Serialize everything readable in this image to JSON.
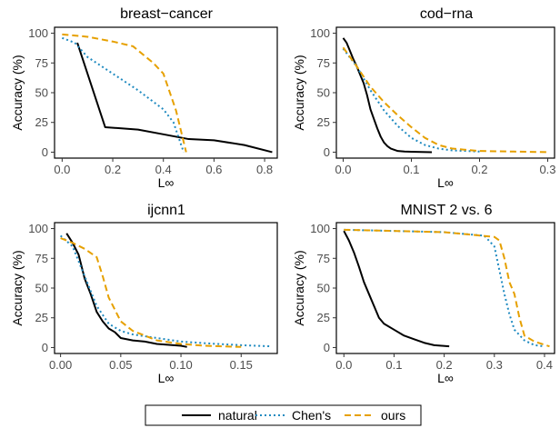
{
  "figure": {
    "legend": {
      "position": "bottom-center",
      "entries": [
        {
          "label": "natural",
          "color": "#000000",
          "dash": "solid"
        },
        {
          "label": "Chen's",
          "color": "#1f8ac0",
          "dash": "dotted"
        },
        {
          "label": "ours",
          "color": "#e6a000",
          "dash": "dashed"
        }
      ]
    }
  },
  "chart_data": [
    {
      "type": "line",
      "title": "breast−cancer",
      "xlabel": "L∞",
      "ylabel": "Accuracy (%)",
      "xlim": [
        -0.03,
        0.85
      ],
      "ylim": [
        -5,
        105
      ],
      "xticks": [
        0.0,
        0.2,
        0.4,
        0.6,
        0.8
      ],
      "xtick_labels": [
        "0.0",
        "0.2",
        "0.4",
        "0.6",
        "0.8"
      ],
      "yticks": [
        0,
        25,
        50,
        75,
        100
      ],
      "ytick_labels": [
        "0",
        "25",
        "50",
        "75",
        "100"
      ],
      "grid": false,
      "series": [
        {
          "name": "natural",
          "x": [
            0.06,
            0.17,
            0.3,
            0.4,
            0.5,
            0.6,
            0.72,
            0.83
          ],
          "y": [
            92,
            21,
            19,
            15,
            11,
            10,
            6,
            0
          ]
        },
        {
          "name": "Chen's",
          "x": [
            0.0,
            0.05,
            0.1,
            0.2,
            0.3,
            0.4,
            0.44,
            0.48
          ],
          "y": [
            96,
            92,
            80,
            66,
            52,
            36,
            25,
            0
          ]
        },
        {
          "name": "ours",
          "x": [
            0.0,
            0.1,
            0.2,
            0.28,
            0.36,
            0.4,
            0.45,
            0.49
          ],
          "y": [
            99,
            97,
            93,
            89,
            75,
            66,
            35,
            0
          ]
        }
      ]
    },
    {
      "type": "line",
      "title": "cod−rna",
      "xlabel": "L∞",
      "ylabel": "Accuracy (%)",
      "xlim": [
        -0.01,
        0.31
      ],
      "ylim": [
        -5,
        105
      ],
      "xticks": [
        0.0,
        0.1,
        0.2,
        0.3
      ],
      "xtick_labels": [
        "0.0",
        "0.1",
        "0.2",
        "0.3"
      ],
      "yticks": [
        0,
        25,
        50,
        75,
        100
      ],
      "ytick_labels": [
        "0",
        "25",
        "50",
        "75",
        "100"
      ],
      "grid": false,
      "series": [
        {
          "name": "natural",
          "x": [
            0.0,
            0.005,
            0.01,
            0.015,
            0.02,
            0.025,
            0.03,
            0.035,
            0.04,
            0.045,
            0.05,
            0.055,
            0.06,
            0.065,
            0.07,
            0.08,
            0.09,
            0.1,
            0.13
          ],
          "y": [
            96,
            92,
            85,
            78,
            72,
            65,
            58,
            48,
            36,
            28,
            20,
            13,
            8,
            5,
            3,
            1,
            0.5,
            0.3,
            0
          ]
        },
        {
          "name": "Chen's",
          "x": [
            0.0,
            0.02,
            0.04,
            0.06,
            0.08,
            0.1,
            0.12,
            0.14,
            0.16,
            0.2
          ],
          "y": [
            87,
            72,
            52,
            35,
            22,
            12,
            6,
            3,
            1.5,
            0.5
          ]
        },
        {
          "name": "ours",
          "x": [
            0.0,
            0.02,
            0.04,
            0.06,
            0.08,
            0.1,
            0.12,
            0.14,
            0.16,
            0.2,
            0.25,
            0.3
          ],
          "y": [
            88,
            72,
            55,
            42,
            31,
            21,
            12,
            6,
            3,
            1,
            0.5,
            0
          ]
        }
      ]
    },
    {
      "type": "line",
      "title": "ijcnn1",
      "xlabel": "L∞",
      "ylabel": "Accuracy (%)",
      "xlim": [
        -0.005,
        0.18
      ],
      "ylim": [
        -5,
        105
      ],
      "xticks": [
        0.0,
        0.05,
        0.1,
        0.15
      ],
      "xtick_labels": [
        "0.00",
        "0.05",
        "0.10",
        "0.15"
      ],
      "yticks": [
        0,
        25,
        50,
        75,
        100
      ],
      "ytick_labels": [
        "0",
        "25",
        "50",
        "75",
        "100"
      ],
      "grid": false,
      "series": [
        {
          "name": "natural",
          "x": [
            0.005,
            0.01,
            0.015,
            0.02,
            0.025,
            0.03,
            0.035,
            0.04,
            0.045,
            0.05,
            0.06,
            0.07,
            0.08,
            0.1,
            0.105
          ],
          "y": [
            96,
            88,
            78,
            58,
            45,
            30,
            22,
            16,
            13,
            8,
            6,
            5,
            3,
            1.5,
            0.5
          ]
        },
        {
          "name": "Chen's",
          "x": [
            0.0,
            0.01,
            0.02,
            0.03,
            0.04,
            0.05,
            0.06,
            0.08,
            0.1,
            0.13,
            0.15,
            0.175
          ],
          "y": [
            94,
            85,
            60,
            35,
            20,
            14,
            11,
            8,
            5,
            3,
            2,
            1
          ]
        },
        {
          "name": "ours",
          "x": [
            0.0,
            0.01,
            0.02,
            0.03,
            0.035,
            0.04,
            0.045,
            0.05,
            0.06,
            0.07,
            0.08,
            0.1,
            0.12,
            0.15
          ],
          "y": [
            92,
            88,
            83,
            76,
            60,
            42,
            32,
            22,
            14,
            10,
            6,
            3,
            1.5,
            0.5
          ]
        }
      ]
    },
    {
      "type": "line",
      "title": "MNIST 2 vs. 6",
      "xlabel": "L∞",
      "ylabel": "Accuracy (%)",
      "xlim": [
        -0.015,
        0.42
      ],
      "ylim": [
        -5,
        105
      ],
      "xticks": [
        0.0,
        0.1,
        0.2,
        0.3,
        0.4
      ],
      "xtick_labels": [
        "0.0",
        "0.1",
        "0.2",
        "0.3",
        "0.4"
      ],
      "yticks": [
        0,
        25,
        50,
        75,
        100
      ],
      "ytick_labels": [
        "0",
        "25",
        "50",
        "75",
        "100"
      ],
      "grid": false,
      "series": [
        {
          "name": "natural",
          "x": [
            0.0,
            0.01,
            0.02,
            0.03,
            0.04,
            0.05,
            0.06,
            0.07,
            0.08,
            0.1,
            0.12,
            0.14,
            0.16,
            0.18,
            0.21
          ],
          "y": [
            98,
            90,
            80,
            68,
            55,
            45,
            35,
            25,
            20,
            15,
            10,
            7,
            4,
            2,
            1
          ]
        },
        {
          "name": "Chen's",
          "x": [
            0.0,
            0.1,
            0.2,
            0.28,
            0.3,
            0.31,
            0.32,
            0.33,
            0.34,
            0.36,
            0.38,
            0.4
          ],
          "y": [
            99,
            98,
            97,
            94,
            85,
            65,
            45,
            28,
            15,
            6,
            2,
            1
          ]
        },
        {
          "name": "ours",
          "x": [
            0.0,
            0.1,
            0.2,
            0.3,
            0.31,
            0.32,
            0.33,
            0.34,
            0.35,
            0.36,
            0.38,
            0.41
          ],
          "y": [
            99,
            98,
            97,
            93,
            90,
            75,
            55,
            45,
            25,
            10,
            5,
            1
          ]
        }
      ]
    }
  ]
}
